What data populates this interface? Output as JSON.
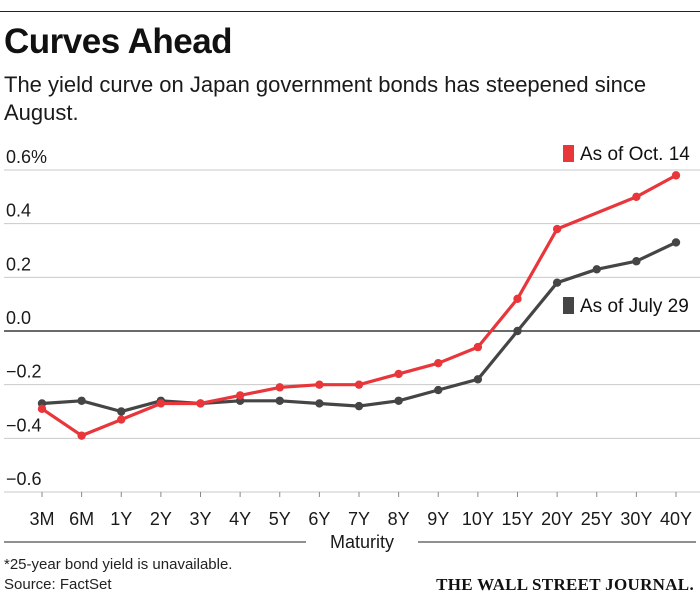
{
  "header": {
    "title": "Curves Ahead",
    "subtitle": "The yield curve on Japan government bonds has steepened since August."
  },
  "footer": {
    "footnote": "*25-year bond yield is unavailable.",
    "source": "Source: FactSet",
    "brand": "THE WALL STREET JOURNAL."
  },
  "chart_data": {
    "type": "line",
    "title": "Curves Ahead",
    "xlabel": "Maturity",
    "ylabel": "",
    "ylim": [
      -0.6,
      0.6
    ],
    "categories": [
      "3M",
      "6M",
      "1Y",
      "2Y",
      "3Y",
      "4Y",
      "5Y",
      "6Y",
      "7Y",
      "8Y",
      "9Y",
      "10Y",
      "15Y",
      "20Y",
      "25Y",
      "30Y",
      "40Y"
    ],
    "yticks": [
      0.6,
      0.4,
      0.2,
      0.0,
      -0.2,
      -0.4,
      -0.6
    ],
    "ytick_labels": [
      "0.6%",
      "0.4",
      "0.2",
      "0.0",
      "−0.2",
      "−0.4",
      "−0.6"
    ],
    "grid": true,
    "series": [
      {
        "name": "As of Oct. 14",
        "color": "#e8363b",
        "values": [
          -0.29,
          -0.39,
          -0.33,
          -0.27,
          -0.27,
          -0.24,
          -0.21,
          -0.2,
          -0.2,
          -0.16,
          -0.12,
          -0.06,
          0.12,
          0.38,
          null,
          0.5,
          0.58
        ]
      },
      {
        "name": "As of July 29",
        "color": "#454545",
        "values": [
          -0.27,
          -0.26,
          -0.3,
          -0.26,
          -0.27,
          -0.26,
          -0.26,
          -0.27,
          -0.28,
          -0.26,
          -0.22,
          -0.18,
          0.0,
          0.18,
          0.23,
          0.26,
          0.33
        ]
      }
    ]
  }
}
